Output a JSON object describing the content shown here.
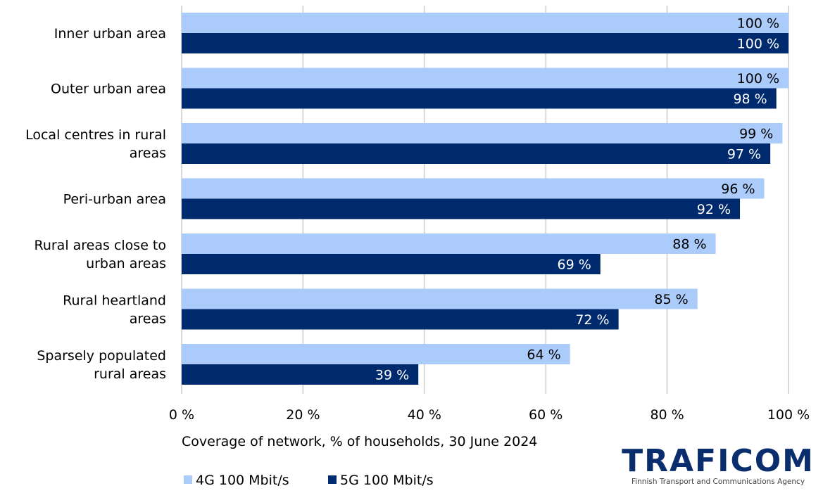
{
  "chart_data": {
    "type": "bar",
    "orientation": "horizontal",
    "categories": [
      [
        "Inner urban area"
      ],
      [
        "Outer urban area"
      ],
      [
        "Local centres in rural",
        "areas"
      ],
      [
        "Peri-urban area"
      ],
      [
        "Rural areas close to",
        "urban areas"
      ],
      [
        "Rural heartland",
        "areas"
      ],
      [
        "Sparsely populated",
        "rural areas"
      ]
    ],
    "series": [
      {
        "name": "4G 100 Mbit/s",
        "color": "#abcbfa",
        "label_color": "#000000",
        "values": [
          100,
          100,
          99,
          96,
          88,
          85,
          64
        ]
      },
      {
        "name": "5G 100 Mbit/s",
        "color": "#002a6e",
        "label_color": "#ffffff",
        "values": [
          100,
          98,
          97,
          92,
          69,
          72,
          39
        ]
      }
    ],
    "value_suffix": " %",
    "xlim": [
      0,
      100
    ],
    "xticks": [
      0,
      20,
      40,
      60,
      80,
      100
    ],
    "xtick_labels": [
      "0 %",
      "20 %",
      "40 %",
      "60 %",
      "80 %",
      "100 %"
    ],
    "xlabel": "Coverage of network, % of households, 30 June 2024",
    "grid": "vertical",
    "gridline_color": "#d9d9d9",
    "legend_position": "bottom-left"
  },
  "logo": {
    "name": "TRAFICOM",
    "tagline": "Finnish Transport and Communications Agency",
    "color": "#0a2d6e"
  }
}
